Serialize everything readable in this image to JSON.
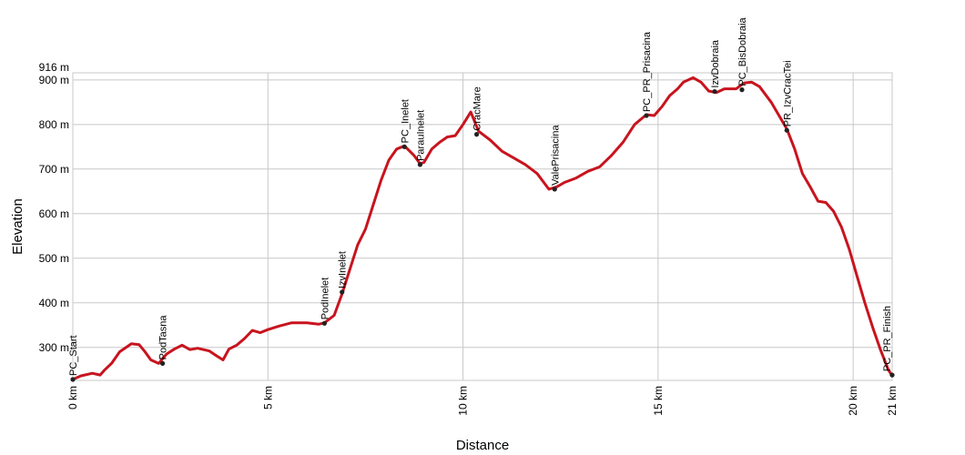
{
  "chart_data": {
    "type": "line",
    "xlabel": "Distance",
    "ylabel": "Elevation",
    "xlim": [
      0,
      21
    ],
    "ylim": [
      226,
      916
    ],
    "x_ticks": [
      {
        "value": 0,
        "label": "0 km"
      },
      {
        "value": 5,
        "label": "5 km"
      },
      {
        "value": 10,
        "label": "10 km"
      },
      {
        "value": 15,
        "label": "15 km"
      },
      {
        "value": 20,
        "label": "20 km"
      },
      {
        "value": 21,
        "label": "21 km"
      }
    ],
    "y_ticks": [
      {
        "value": 300,
        "label": "300 m"
      },
      {
        "value": 400,
        "label": "400 m"
      },
      {
        "value": 500,
        "label": "500 m"
      },
      {
        "value": 600,
        "label": "600 m"
      },
      {
        "value": 700,
        "label": "700 m"
      },
      {
        "value": 800,
        "label": "800 m"
      },
      {
        "value": 900,
        "label": "900 m"
      },
      {
        "value": 916,
        "label": "916 m"
      }
    ],
    "grid": true,
    "line_color": "#c8141e",
    "series": [
      {
        "x": [
          0,
          0.2,
          0.5,
          0.7,
          0.8,
          1.0,
          1.2,
          1.5,
          1.7,
          1.85,
          2.0,
          2.2,
          2.4,
          2.6,
          2.8,
          3.0,
          3.2,
          3.5,
          3.7,
          3.85,
          4.0,
          4.2,
          4.4,
          4.6,
          4.8,
          5.0,
          5.3,
          5.6,
          6.0,
          6.3,
          6.45,
          6.7,
          6.9,
          7.1,
          7.3,
          7.5,
          7.7,
          7.9,
          8.1,
          8.3,
          8.5,
          8.75,
          8.9,
          9.0,
          9.2,
          9.4,
          9.6,
          9.8,
          10.0,
          10.2,
          10.4,
          10.7,
          11.0,
          11.3,
          11.6,
          11.9,
          12.2,
          12.4,
          12.6,
          12.9,
          13.2,
          13.5,
          13.8,
          14.1,
          14.4,
          14.7,
          14.9,
          15.1,
          15.3,
          15.5,
          15.65,
          15.9,
          16.1,
          16.3,
          16.5,
          16.7,
          17.0,
          17.2,
          17.4,
          17.6,
          17.9,
          18.1,
          18.3,
          18.5,
          18.7,
          18.9,
          19.1,
          19.3,
          19.5,
          19.7,
          19.9,
          20.1,
          20.3,
          20.5,
          20.7,
          20.9,
          21.0
        ],
        "y": [
          228,
          236,
          242,
          238,
          248,
          265,
          290,
          308,
          306,
          290,
          272,
          264,
          285,
          296,
          305,
          295,
          298,
          292,
          280,
          272,
          296,
          305,
          320,
          338,
          333,
          340,
          348,
          355,
          355,
          352,
          355,
          372,
          420,
          475,
          530,
          565,
          620,
          675,
          720,
          745,
          752,
          730,
          712,
          715,
          745,
          760,
          772,
          775,
          800,
          828,
          785,
          765,
          740,
          725,
          710,
          690,
          655,
          660,
          670,
          680,
          695,
          705,
          730,
          760,
          800,
          822,
          820,
          840,
          865,
          880,
          895,
          905,
          895,
          875,
          872,
          880,
          880,
          893,
          895,
          885,
          850,
          820,
          790,
          745,
          690,
          660,
          628,
          625,
          605,
          570,
          520,
          460,
          400,
          345,
          295,
          250,
          236
        ]
      }
    ],
    "waypoints": [
      {
        "name": "PC_Start",
        "x": 0.0,
        "y": 228
      },
      {
        "name": "PodTasna",
        "x": 2.3,
        "y": 264
      },
      {
        "name": "PodInelet",
        "x": 6.45,
        "y": 354
      },
      {
        "name": "IzvInelet",
        "x": 6.9,
        "y": 424
      },
      {
        "name": "PC_Inelet",
        "x": 8.5,
        "y": 750
      },
      {
        "name": "ParauInelet",
        "x": 8.9,
        "y": 710
      },
      {
        "name": "CracMare",
        "x": 10.35,
        "y": 778
      },
      {
        "name": "ValePrisacina",
        "x": 12.35,
        "y": 655
      },
      {
        "name": "PC_PR_Prisacina",
        "x": 14.7,
        "y": 820
      },
      {
        "name": "IzvDobraia",
        "x": 16.45,
        "y": 874
      },
      {
        "name": "PC_BisDobraia",
        "x": 17.15,
        "y": 878
      },
      {
        "name": "PR_IzvCracTei",
        "x": 18.3,
        "y": 787
      },
      {
        "name": "PC_PR_Finish",
        "x": 21.0,
        "y": 238
      }
    ]
  }
}
